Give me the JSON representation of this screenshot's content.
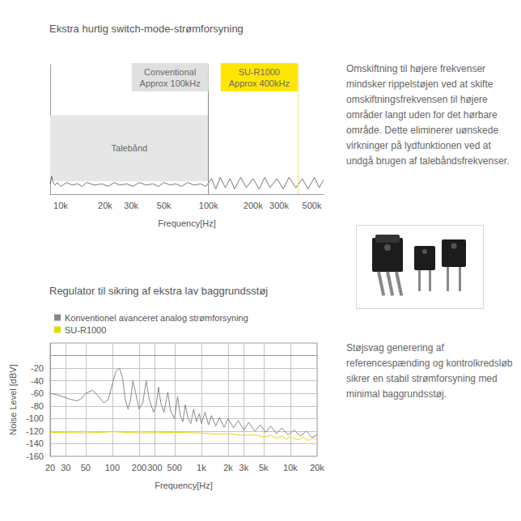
{
  "chart_data": [
    {
      "type": "line",
      "title": "Ekstra hurtig switch-mode-strømforsyning",
      "annotations": [
        "Omskiftning til højere frekvenser mindsker rippelstøjen ved at skifte omskiftningsfrekvensen til højere områder langt uden for det hørbare område. Dette eliminerer uønskede virkninger på lydfunktionen ved at undgå brugen af talebåndsfrekvenser."
      ],
      "xlabel": "Frequency[Hz]",
      "log": "x",
      "grid": false,
      "tick_labels": "x",
      "xlim": [
        8500,
        600000
      ],
      "xticks": [
        {
          "value": 10000,
          "label": "10k"
        },
        {
          "value": 20000,
          "label": "20k"
        },
        {
          "value": 30000,
          "label": "30k"
        },
        {
          "value": 50000,
          "label": "50k"
        },
        {
          "value": 100000,
          "label": "100k"
        },
        {
          "value": 200000,
          "label": "200k"
        },
        {
          "value": 300000,
          "label": "300k"
        },
        {
          "value": 500000,
          "label": "500k"
        }
      ],
      "ylim": [
        0,
        100
      ],
      "band": {
        "label": "Talebånd",
        "x": [
          8500,
          100000
        ],
        "y": [
          10,
          61
        ],
        "color": "#e6e6e6"
      },
      "markers": [
        {
          "x": 100000,
          "label": "Conventional\nApprox 100kHz",
          "color": "#e0e0e0"
        },
        {
          "x": 400000,
          "label": "SU-R1000\nApprox 400kHz",
          "color": "#ffe600"
        }
      ],
      "color": "#555555",
      "x": [
        8500,
        8700,
        8900,
        9200,
        9500,
        10000,
        11000,
        12000,
        13000,
        14000,
        15000,
        17000,
        19000,
        21000,
        23000,
        25000,
        28000,
        31000,
        34000,
        38000,
        42000,
        46000,
        50000,
        55000,
        60000,
        66000,
        72000,
        80000,
        88000,
        96000,
        105000,
        112000,
        120000,
        130000,
        140000,
        150000,
        165000,
        180000,
        200000,
        220000,
        240000,
        260000,
        290000,
        320000,
        350000,
        390000,
        430000,
        470000,
        520000,
        560000,
        600000
      ],
      "values": [
        8,
        14,
        9,
        7,
        9,
        6,
        9,
        7,
        8,
        6,
        9,
        7,
        8,
        6,
        9,
        7,
        8,
        6,
        9,
        7,
        8,
        6,
        9,
        7,
        8,
        6,
        9,
        7,
        8,
        6,
        12,
        4,
        13,
        5,
        12,
        4,
        13,
        5,
        12,
        4,
        13,
        5,
        12,
        4,
        13,
        5,
        12,
        4,
        13,
        5,
        11
      ]
    },
    {
      "type": "line",
      "title": "Regulator til sikring af ekstra lav baggrundsstøj",
      "annotations": [
        "Støjsvag generering af referencespænding og kontrolkredsløb sikrer en stabil strømforsyning med minimal baggrundsstøj."
      ],
      "xlabel": "Frequency[Hz]",
      "ylabel": "Noise Level [dBV]",
      "log": "x",
      "grid": true,
      "legend": "upper left",
      "xlim": [
        20,
        20000
      ],
      "xticks": [
        20,
        30,
        50,
        100,
        200,
        300,
        500,
        {
          "value": 1000,
          "label": "1k"
        },
        {
          "value": 2000,
          "label": "2k"
        },
        {
          "value": 3000,
          "label": "3k"
        },
        {
          "value": 5000,
          "label": "5k"
        },
        {
          "value": 10000,
          "label": "10k"
        },
        {
          "value": 20000,
          "label": "20k"
        }
      ],
      "ylim": [
        -160,
        20
      ],
      "yticks": [
        -160,
        -140,
        -120,
        -100,
        -80,
        -60,
        -40,
        -20
      ],
      "series": [
        {
          "name": "Konventionel avanceret analog strømforsyning",
          "color": "#888888",
          "x": [
            20,
            25,
            30,
            35,
            40,
            45,
            50,
            60,
            70,
            80,
            90,
            100,
            110,
            120,
            130,
            140,
            150,
            160,
            170,
            180,
            200,
            220,
            240,
            260,
            290,
            310,
            330,
            350,
            380,
            420,
            450,
            500,
            540,
            580,
            620,
            660,
            710,
            760,
            820,
            880,
            950,
            1000,
            1100,
            1200,
            1300,
            1450,
            1600,
            1800,
            2000,
            2300,
            2600,
            3000,
            3400,
            4000,
            4600,
            5300,
            6000,
            7000,
            8000,
            9500,
            11000,
            13000,
            15000,
            17500,
            20000
          ],
          "values": [
            -60,
            -63,
            -67,
            -70,
            -72,
            -68,
            -60,
            -55,
            -65,
            -75,
            -70,
            -45,
            -25,
            -20,
            -35,
            -70,
            -85,
            -70,
            -40,
            -55,
            -85,
            -75,
            -40,
            -70,
            -90,
            -80,
            -50,
            -75,
            -90,
            -58,
            -88,
            -100,
            -65,
            -95,
            -105,
            -78,
            -100,
            -108,
            -85,
            -105,
            -92,
            -108,
            -90,
            -110,
            -95,
            -112,
            -98,
            -114,
            -100,
            -115,
            -103,
            -118,
            -106,
            -120,
            -110,
            -122,
            -112,
            -124,
            -115,
            -126,
            -118,
            -128,
            -120,
            -130,
            -126
          ]
        },
        {
          "name": "SU-R1000",
          "color": "#e8d800",
          "x": [
            20,
            50,
            100,
            200,
            500,
            1000,
            1500,
            2000,
            3000,
            4000,
            5000,
            6000,
            7000,
            8000,
            9000,
            10000,
            12000,
            14000,
            16000,
            18000,
            20000
          ],
          "values": [
            -122,
            -123,
            -121,
            -123,
            -122,
            -123,
            -125,
            -124,
            -127,
            -126,
            -129,
            -127,
            -131,
            -128,
            -133,
            -129,
            -134,
            -130,
            -135,
            -131,
            -134
          ]
        }
      ]
    }
  ]
}
